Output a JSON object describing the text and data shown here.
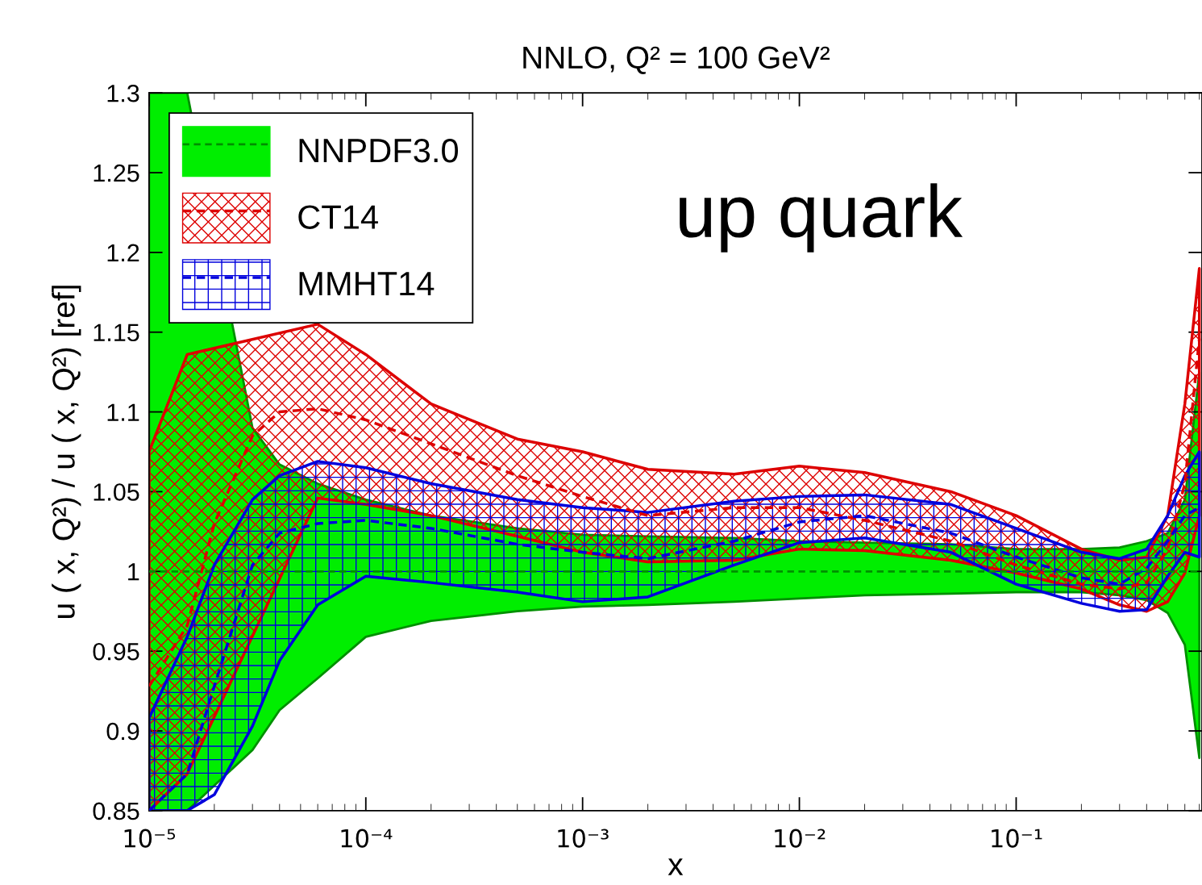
{
  "chart_data": {
    "type": "line",
    "title": "NNLO, Q² = 100 GeV²",
    "xlabel": "x",
    "ylabel": "u ( x, Q²) / u ( x, Q²) [ref]",
    "x": [
      1e-05,
      1.5e-05,
      2e-05,
      3e-05,
      4e-05,
      6e-05,
      0.0001,
      0.0002,
      0.0005,
      0.001,
      0.002,
      0.005,
      0.01,
      0.02,
      0.05,
      0.1,
      0.2,
      0.3,
      0.4,
      0.5,
      0.6,
      0.7
    ],
    "log": "x",
    "xlim": [
      1e-05,
      0.72
    ],
    "ylim": [
      0.85,
      1.3
    ],
    "xticks": [
      {
        "value": 1e-05,
        "label": "10⁻⁵"
      },
      {
        "value": 0.0001,
        "label": "10⁻⁴"
      },
      {
        "value": 0.001,
        "label": "10⁻³"
      },
      {
        "value": 0.01,
        "label": "10⁻²"
      },
      {
        "value": 0.1,
        "label": "10⁻¹"
      }
    ],
    "yticks": [
      0.85,
      0.9,
      0.95,
      1,
      1.05,
      1.1,
      1.15,
      1.2,
      1.25,
      1.3
    ],
    "grid": false,
    "legend": "top left",
    "line_style": "dashed",
    "marker": "none",
    "annotations": [
      "up quark"
    ],
    "series": [
      {
        "name": "NNPDF3.0",
        "color": "#008f00",
        "values": [
          1,
          1,
          1,
          1,
          1,
          1,
          1,
          1,
          1,
          1,
          1,
          1,
          1,
          1,
          1,
          1,
          1,
          1,
          1,
          1,
          1,
          1
        ],
        "upper": [
          1.3,
          1.3,
          null,
          1.09,
          1.067,
          1.055,
          1.045,
          1.035,
          1.027,
          1.023,
          1.022,
          1.021,
          1.019,
          1.018,
          1.017,
          1.014,
          1.014,
          1.015,
          1.019,
          1.024,
          1.045,
          1.125
        ],
        "lower": [
          0.85,
          0.85,
          null,
          0.888,
          0.913,
          0.933,
          0.959,
          0.969,
          0.975,
          0.978,
          0.979,
          0.981,
          0.983,
          0.985,
          0.986,
          0.987,
          0.987,
          0.985,
          0.982,
          0.974,
          0.954,
          0.883
        ]
      },
      {
        "name": "CT14",
        "color": "#dd0000",
        "values": [
          0.928,
          0.966,
          1.03,
          1.085,
          1.1,
          1.102,
          1.095,
          1.08,
          1.06,
          1.047,
          1.035,
          1.04,
          1.04,
          1.032,
          1.019,
          1.004,
          0.992,
          0.989,
          0.993,
          1.014,
          1.055,
          1.146
        ],
        "upper": [
          1.075,
          1.136,
          null,
          null,
          null,
          1.155,
          1.136,
          1.105,
          1.083,
          1.075,
          1.064,
          1.061,
          1.066,
          1.062,
          1.05,
          1.035,
          1.014,
          1.007,
          1.009,
          1.035,
          1.105,
          1.19
        ],
        "lower": [
          0.85,
          0.873,
          null,
          null,
          null,
          1.046,
          1.042,
          1.035,
          1.022,
          1.012,
          1.006,
          1.007,
          1.014,
          1.013,
          1.007,
          0.999,
          0.989,
          0.979,
          0.975,
          0.981,
          0.999,
          1.035
        ]
      },
      {
        "name": "MMHT14",
        "color": "#0000dd",
        "values": [
          0.85,
          0.873,
          0.928,
          1.004,
          1.024,
          1.03,
          1.032,
          1.027,
          1.017,
          1.012,
          1.008,
          1.019,
          1.031,
          1.035,
          1.024,
          1.009,
          0.996,
          0.992,
          1.002,
          1.019,
          1.035,
          1.04
        ],
        "upper": [
          0.908,
          0.959,
          1.004,
          1.045,
          1.06,
          1.069,
          1.065,
          1.055,
          1.045,
          1.04,
          1.037,
          1.044,
          1.047,
          1.048,
          1.042,
          1.027,
          1.012,
          1.008,
          1.014,
          1.035,
          1.06,
          1.075
        ],
        "lower": [
          0.85,
          0.85,
          0.86,
          0.903,
          0.944,
          0.979,
          0.997,
          0.993,
          0.987,
          0.981,
          0.984,
          1.004,
          1.018,
          1.021,
          1.012,
          0.992,
          0.98,
          0.975,
          0.976,
          0.997,
          1.012,
          1.009
        ]
      }
    ]
  }
}
